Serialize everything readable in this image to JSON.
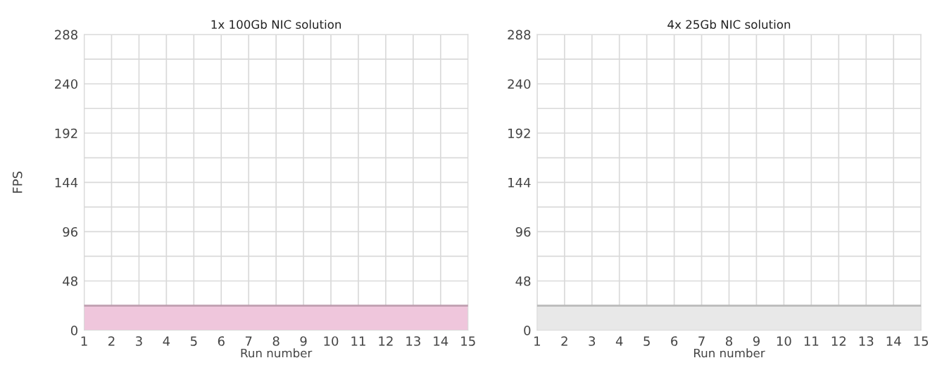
{
  "chart_data": [
    {
      "type": "area",
      "title": "1x 100Gb NIC solution",
      "xlabel": "Run number",
      "ylabel": "FPS",
      "categories": [
        "1",
        "2",
        "3",
        "4",
        "5",
        "6",
        "7",
        "8",
        "9",
        "10",
        "11",
        "12",
        "13",
        "14",
        "15"
      ],
      "series": [
        {
          "color": "#efc6dc",
          "values": [
            24,
            24,
            24,
            24,
            24,
            24,
            24,
            24,
            24,
            24,
            24,
            24,
            24,
            24,
            24
          ]
        }
      ],
      "ylim": [
        0,
        288
      ],
      "yticks": [
        0,
        48,
        {
          "value": 72,
          "label": null
        },
        96,
        {
          "value": 120,
          "label": null
        },
        144,
        {
          "value": 168,
          "label": null
        },
        192,
        {
          "value": 216,
          "label": null
        },
        240,
        {
          "value": 264,
          "label": null
        },
        288
      ],
      "grid": true
    },
    {
      "type": "area",
      "title": "4x 25Gb NIC solution",
      "xlabel": "Run number",
      "categories": [
        "1",
        "2",
        "3",
        "4",
        "5",
        "6",
        "7",
        "8",
        "9",
        "10",
        "11",
        "12",
        "13",
        "14",
        "15"
      ],
      "series": [
        {
          "color": "#e8e8e8",
          "values": [
            24,
            24,
            24,
            24,
            24,
            24,
            24,
            24,
            24,
            24,
            24,
            24,
            24,
            24,
            24
          ]
        }
      ],
      "ylim": [
        0,
        288
      ],
      "yticks": [
        0,
        48,
        {
          "value": 72,
          "label": null
        },
        96,
        {
          "value": 120,
          "label": null
        },
        144,
        {
          "value": 168,
          "label": null
        },
        192,
        {
          "value": 216,
          "label": null
        },
        240,
        {
          "value": 264,
          "label": null
        },
        288
      ],
      "grid": true
    }
  ]
}
